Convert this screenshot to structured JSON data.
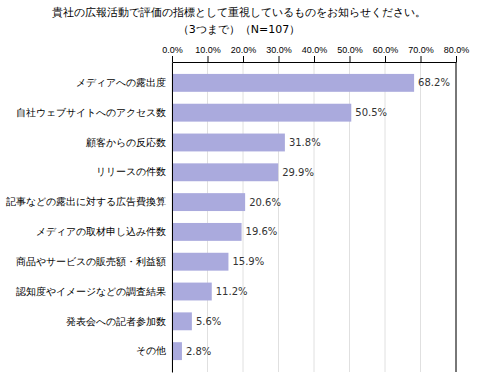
{
  "chart_data": {
    "type": "bar",
    "orientation": "horizontal",
    "title": "貴社の広報活動で評価の指標として重視しているものをお知らせください。",
    "subtitle": "（3つまで）（N=107）",
    "categories": [
      "メディアへの露出度",
      "自社ウェブサイトへのアクセス数",
      "顧客からの反応数",
      "リリースの件数",
      "記事などの露出に対する広告費換算",
      "メディアの取材申し込み件数",
      "商品やサービスの販売額・利益額",
      "認知度やイメージなどの調査結果",
      "発表会への記者参加数",
      "その他"
    ],
    "values": [
      68.2,
      50.5,
      31.8,
      29.9,
      20.6,
      19.6,
      15.9,
      11.2,
      5.6,
      2.8
    ],
    "value_labels": [
      "68.2%",
      "50.5%",
      "31.8%",
      "29.9%",
      "20.6%",
      "19.6%",
      "15.9%",
      "11.2%",
      "5.6%",
      "2.8%"
    ],
    "data_labels": true,
    "color": "#aaaadd",
    "xlim": [
      0,
      80
    ],
    "xticks": [
      {
        "value": 0,
        "label": "0.0%"
      },
      {
        "value": 10,
        "label": "10.0%"
      },
      {
        "value": 20,
        "label": "20.0%"
      },
      {
        "value": 30,
        "label": "30.0%"
      },
      {
        "value": 40,
        "label": "40.0%"
      },
      {
        "value": 50,
        "label": "50.0%"
      },
      {
        "value": 60,
        "label": "60.0%"
      },
      {
        "value": 70,
        "label": "70.0%"
      },
      {
        "value": 80,
        "label": "80.0%"
      }
    ],
    "grid": true
  }
}
